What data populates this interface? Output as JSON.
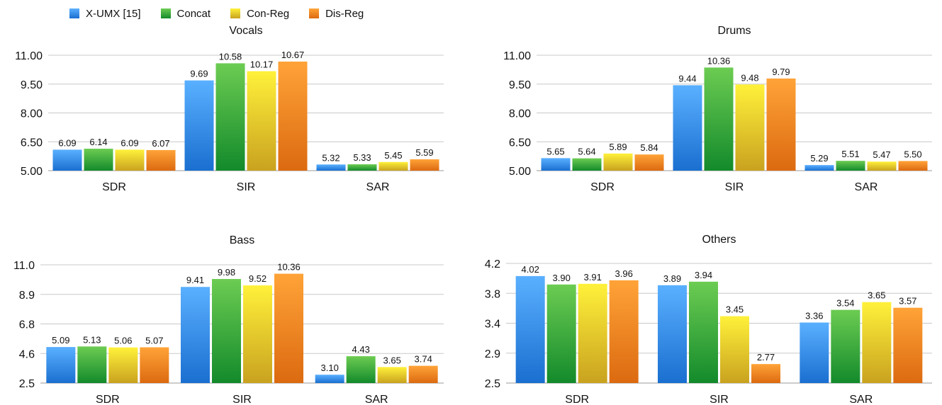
{
  "legend": [
    {
      "name": "X-UMX [15]",
      "color": "#2f8fe8"
    },
    {
      "name": "Concat",
      "color": "#2fa02f"
    },
    {
      "name": "Con-Reg",
      "color": "#f2d21c"
    },
    {
      "name": "Dis-Reg",
      "color": "#f0891a"
    }
  ],
  "chart_data": [
    {
      "type": "bar",
      "title": "Vocals",
      "categories": [
        "SDR",
        "SIR",
        "SAR"
      ],
      "yticks": [
        "11.00",
        "9.50",
        "8.00",
        "6.50",
        "5.00"
      ],
      "ylim": [
        5.0,
        11.0
      ],
      "series": [
        {
          "name": "X-UMX [15]",
          "values": [
            6.09,
            9.69,
            5.32
          ],
          "labels": [
            "6.09",
            "9.69",
            "5.32"
          ]
        },
        {
          "name": "Concat",
          "values": [
            6.14,
            10.58,
            5.33
          ],
          "labels": [
            "6.14",
            "10.58",
            "5.33"
          ]
        },
        {
          "name": "Con-Reg",
          "values": [
            6.09,
            10.17,
            5.45
          ],
          "labels": [
            "6.09",
            "10.17",
            "5.45"
          ]
        },
        {
          "name": "Dis-Reg",
          "values": [
            6.07,
            10.67,
            5.59
          ],
          "labels": [
            "6.07",
            "10.67",
            "5.59"
          ]
        }
      ],
      "grid": true
    },
    {
      "type": "bar",
      "title": "Drums",
      "categories": [
        "SDR",
        "SIR",
        "SAR"
      ],
      "yticks": [
        "11.00",
        "9.50",
        "8.00",
        "6.50",
        "5.00"
      ],
      "ylim": [
        5.0,
        11.0
      ],
      "series": [
        {
          "name": "X-UMX [15]",
          "values": [
            5.65,
            9.44,
            5.29
          ],
          "labels": [
            "5.65",
            "9.44",
            "5.29"
          ]
        },
        {
          "name": "Concat",
          "values": [
            5.64,
            10.36,
            5.51
          ],
          "labels": [
            "5.64",
            "10.36",
            "5.51"
          ]
        },
        {
          "name": "Con-Reg",
          "values": [
            5.89,
            9.48,
            5.47
          ],
          "labels": [
            "5.89",
            "9.48",
            "5.47"
          ]
        },
        {
          "name": "Dis-Reg",
          "values": [
            5.84,
            9.79,
            5.5
          ],
          "labels": [
            "5.84",
            "9.79",
            "5.50"
          ]
        }
      ],
      "grid": true
    },
    {
      "type": "bar",
      "title": "Bass",
      "categories": [
        "SDR",
        "SIR",
        "SAR"
      ],
      "yticks": [
        "11.0",
        "8.9",
        "6.8",
        "4.6",
        "2.5"
      ],
      "ylim": [
        2.5,
        11.0
      ],
      "series": [
        {
          "name": "X-UMX [15]",
          "values": [
            5.09,
            9.41,
            3.1
          ],
          "labels": [
            "5.09",
            "9.41",
            "3.10"
          ]
        },
        {
          "name": "Concat",
          "values": [
            5.13,
            9.98,
            4.43
          ],
          "labels": [
            "5.13",
            "9.98",
            "4.43"
          ]
        },
        {
          "name": "Con-Reg",
          "values": [
            5.06,
            9.52,
            3.65
          ],
          "labels": [
            "5.06",
            "9.52",
            "3.65"
          ]
        },
        {
          "name": "Dis-Reg",
          "values": [
            5.07,
            10.36,
            3.74
          ],
          "labels": [
            "5.07",
            "10.36",
            "3.74"
          ]
        }
      ],
      "grid": true
    },
    {
      "type": "bar",
      "title": "Others",
      "categories": [
        "SDR",
        "SIR",
        "SAR"
      ],
      "yticks": [
        "4.2",
        "3.8",
        "3.4",
        "2.9",
        "2.5"
      ],
      "ylim": [
        2.5,
        4.2
      ],
      "series": [
        {
          "name": "X-UMX [15]",
          "values": [
            4.02,
            3.89,
            3.36
          ],
          "labels": [
            "4.02",
            "3.89",
            "3.36"
          ]
        },
        {
          "name": "Concat",
          "values": [
            3.9,
            3.94,
            3.54
          ],
          "labels": [
            "3.90",
            "3.94",
            "3.54"
          ]
        },
        {
          "name": "Con-Reg",
          "values": [
            3.91,
            3.45,
            3.65
          ],
          "labels": [
            "3.91",
            "3.45",
            "3.65"
          ]
        },
        {
          "name": "Dis-Reg",
          "values": [
            3.96,
            2.77,
            3.57
          ],
          "labels": [
            "3.96",
            "2.77",
            "3.57"
          ]
        }
      ],
      "grid": true
    }
  ]
}
